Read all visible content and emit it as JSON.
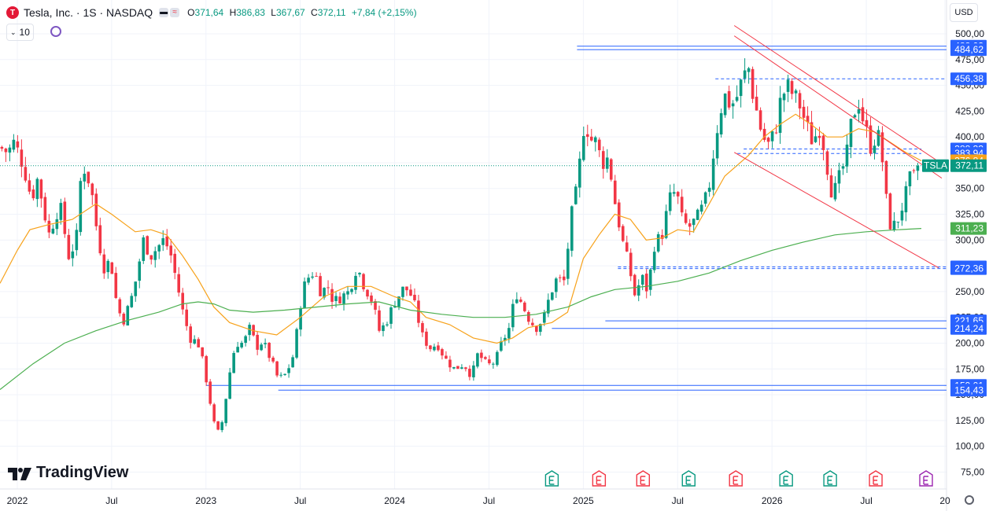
{
  "header": {
    "symbol": "Tesla, Inc. · 1S · NASDAQ",
    "logo_letter": "T",
    "open_label": "O",
    "open": "371,64",
    "high_label": "H",
    "high": "386,83",
    "low_label": "L",
    "low": "367,67",
    "close_label": "C",
    "close": "372,11",
    "change": "+7,84 (+2,15%)",
    "interval": "10",
    "currency": "USD"
  },
  "brand": {
    "name": "TradingView"
  },
  "colors": {
    "up": "#089981",
    "down": "#f23645",
    "ma_fast": "#f7a21b",
    "ma_slow": "#4caf50",
    "levels": "#2962ff",
    "channel": "#f23645"
  },
  "chart_data": {
    "type": "candlestick",
    "ticker": "TSLA",
    "y_ticks": [
      "75,00",
      "100,00",
      "125,00",
      "150,00",
      "175,00",
      "200,00",
      "225,00",
      "250,00",
      "275,00",
      "300,00",
      "325,00",
      "350,00",
      "375,00",
      "400,00",
      "425,00",
      "450,00",
      "475,00",
      "500,00"
    ],
    "ylim": [
      70,
      500
    ],
    "x_labels": [
      {
        "label": "2022",
        "t": 0
      },
      {
        "label": "Jul",
        "t": 6
      },
      {
        "label": "2023",
        "t": 12
      },
      {
        "label": "Jul",
        "t": 18
      },
      {
        "label": "2024",
        "t": 24
      },
      {
        "label": "Jul",
        "t": 30
      },
      {
        "label": "2025",
        "t": 36
      },
      {
        "label": "Jul",
        "t": 42
      },
      {
        "label": "2026",
        "t": 48
      },
      {
        "label": "Jul",
        "t": 54
      },
      {
        "label": "20",
        "t": 59
      }
    ],
    "xlim": [
      -1.1,
      59.1
    ],
    "last_price": 372.11,
    "last_price_label": "372,11",
    "price_labels": [
      {
        "value": 488.03,
        "label": "488,03",
        "kind": "level"
      },
      {
        "value": 484.62,
        "label": "484,62",
        "kind": "level"
      },
      {
        "value": 456.38,
        "label": "456,38",
        "kind": "level"
      },
      {
        "value": 388.33,
        "label": "388,33",
        "kind": "level"
      },
      {
        "value": 383.94,
        "label": "383,94",
        "kind": "plain"
      },
      {
        "value": 376.84,
        "label": "376,84",
        "kind": "fast"
      },
      {
        "value": 311.23,
        "label": "311,23",
        "kind": "slow"
      },
      {
        "value": 273.92,
        "label": "273,92",
        "kind": "level"
      },
      {
        "value": 272.36,
        "label": "272,36",
        "kind": "level"
      },
      {
        "value": 221.65,
        "label": "221,65",
        "kind": "level"
      },
      {
        "value": 214.24,
        "label": "214,24",
        "kind": "level"
      },
      {
        "value": 159.01,
        "label": "159,01",
        "kind": "level"
      },
      {
        "value": 154.43,
        "label": "154,43",
        "kind": "level"
      }
    ],
    "levels": [
      {
        "value": 488.03,
        "t0": 35.6,
        "t1": 59.1,
        "dash": false
      },
      {
        "value": 484.62,
        "t0": 35.6,
        "t1": 59.1,
        "dash": false
      },
      {
        "value": 456.38,
        "t0": 44.4,
        "t1": 59.1,
        "dash": true
      },
      {
        "value": 383.94,
        "t0": 45.8,
        "t1": 57.5,
        "dash": true
      },
      {
        "value": 388.33,
        "t0": 46.2,
        "t1": 57.5,
        "dash": true
      },
      {
        "value": 273.92,
        "t0": 38.2,
        "t1": 59.1,
        "dash": true
      },
      {
        "value": 272.36,
        "t0": 38.2,
        "t1": 59.1,
        "dash": true
      },
      {
        "value": 221.65,
        "t0": 37.4,
        "t1": 59.1,
        "dash": false
      },
      {
        "value": 214.24,
        "t0": 34.0,
        "t1": 59.1,
        "dash": false
      },
      {
        "value": 159.01,
        "t0": 12.0,
        "t1": 59.1,
        "dash": false
      },
      {
        "value": 154.43,
        "t0": 16.6,
        "t1": 59.1,
        "dash": false
      }
    ],
    "channel": [
      {
        "t0": 45.6,
        "v0": 508,
        "t1": 59.0,
        "v1": 372
      },
      {
        "t0": 45.6,
        "v0": 498,
        "t1": 58.8,
        "v1": 360
      },
      {
        "t0": 45.6,
        "v0": 385,
        "t1": 58.6,
        "v1": 273
      }
    ],
    "earnings_markers": [
      {
        "t": 34.0,
        "type": "up"
      },
      {
        "t": 37.0,
        "type": "down"
      },
      {
        "t": 39.8,
        "type": "down"
      },
      {
        "t": 42.7,
        "type": "up"
      },
      {
        "t": 45.7,
        "type": "down"
      },
      {
        "t": 48.9,
        "type": "up"
      },
      {
        "t": 51.7,
        "type": "up"
      },
      {
        "t": 54.6,
        "type": "down"
      },
      {
        "t": 57.8,
        "type": "dividend"
      }
    ],
    "anchors": [
      [
        -1.1,
        390
      ],
      [
        -0.6,
        385
      ],
      [
        -0.2,
        395
      ],
      [
        0.4,
        372
      ],
      [
        0.9,
        340
      ],
      [
        1.3,
        360
      ],
      [
        2.0,
        305
      ],
      [
        2.7,
        335
      ],
      [
        3.3,
        282
      ],
      [
        3.8,
        305
      ],
      [
        4.1,
        375
      ],
      [
        4.4,
        365
      ],
      [
        4.7,
        350
      ],
      [
        5.1,
        305
      ],
      [
        5.6,
        268
      ],
      [
        5.9,
        285
      ],
      [
        6.3,
        240
      ],
      [
        6.7,
        220
      ],
      [
        7.2,
        240
      ],
      [
        7.6,
        265
      ],
      [
        8.0,
        300
      ],
      [
        8.5,
        285
      ],
      [
        9.3,
        300
      ],
      [
        9.7,
        290
      ],
      [
        10.2,
        255
      ],
      [
        10.6,
        225
      ],
      [
        11.0,
        205
      ],
      [
        11.5,
        200
      ],
      [
        11.9,
        175
      ],
      [
        12.3,
        140
      ],
      [
        12.6,
        115
      ],
      [
        12.9,
        112
      ],
      [
        13.3,
        150
      ],
      [
        13.6,
        180
      ],
      [
        13.9,
        200
      ],
      [
        14.4,
        200
      ],
      [
        14.8,
        215
      ],
      [
        15.2,
        196
      ],
      [
        15.6,
        202
      ],
      [
        16.1,
        185
      ],
      [
        16.6,
        165
      ],
      [
        17.1,
        170
      ],
      [
        17.6,
        190
      ],
      [
        18.1,
        248
      ],
      [
        18.4,
        262
      ],
      [
        18.9,
        270
      ],
      [
        19.3,
        250
      ],
      [
        19.8,
        255
      ],
      [
        20.1,
        240
      ],
      [
        20.6,
        245
      ],
      [
        21.1,
        250
      ],
      [
        21.6,
        275
      ],
      [
        22.0,
        258
      ],
      [
        22.6,
        240
      ],
      [
        23.0,
        212
      ],
      [
        23.4,
        218
      ],
      [
        24.0,
        240
      ],
      [
        24.5,
        252
      ],
      [
        24.9,
        252
      ],
      [
        25.3,
        235
      ],
      [
        25.8,
        205
      ],
      [
        26.3,
        195
      ],
      [
        26.7,
        200
      ],
      [
        27.2,
        185
      ],
      [
        27.8,
        175
      ],
      [
        28.4,
        180
      ],
      [
        28.9,
        168
      ],
      [
        29.3,
        190
      ],
      [
        29.9,
        178
      ],
      [
        30.4,
        182
      ],
      [
        30.8,
        200
      ],
      [
        31.3,
        215
      ],
      [
        31.7,
        250
      ],
      [
        32.1,
        238
      ],
      [
        32.6,
        222
      ],
      [
        33.0,
        215
      ],
      [
        33.5,
        225
      ],
      [
        33.9,
        248
      ],
      [
        34.3,
        262
      ],
      [
        34.8,
        260
      ],
      [
        35.2,
        320
      ],
      [
        35.6,
        350
      ],
      [
        35.8,
        378
      ],
      [
        36.1,
        420
      ],
      [
        36.4,
        398
      ],
      [
        36.8,
        395
      ],
      [
        37.2,
        375
      ],
      [
        37.6,
        380
      ],
      [
        38.0,
        338
      ],
      [
        38.5,
        298
      ],
      [
        38.9,
        275
      ],
      [
        39.3,
        245
      ],
      [
        39.7,
        265
      ],
      [
        40.1,
        250
      ],
      [
        40.5,
        295
      ],
      [
        41.0,
        305
      ],
      [
        41.5,
        340
      ],
      [
        41.9,
        348
      ],
      [
        42.3,
        318
      ],
      [
        42.7,
        312
      ],
      [
        43.2,
        320
      ],
      [
        43.7,
        335
      ],
      [
        44.0,
        352
      ],
      [
        44.4,
        398
      ],
      [
        44.7,
        425
      ],
      [
        45.0,
        440
      ],
      [
        45.4,
        430
      ],
      [
        45.8,
        440
      ],
      [
        46.1,
        455
      ],
      [
        46.5,
        468
      ],
      [
        46.8,
        440
      ],
      [
        47.1,
        420
      ],
      [
        47.4,
        400
      ],
      [
        47.8,
        392
      ],
      [
        48.2,
        405
      ],
      [
        48.6,
        440
      ],
      [
        49.0,
        448
      ],
      [
        49.4,
        440
      ],
      [
        49.8,
        430
      ],
      [
        50.2,
        410
      ],
      [
        50.6,
        395
      ],
      [
        51.0,
        410
      ],
      [
        51.4,
        385
      ],
      [
        51.7,
        350
      ],
      [
        52.0,
        348
      ],
      [
        52.4,
        365
      ],
      [
        52.8,
        385
      ],
      [
        53.1,
        420
      ],
      [
        53.5,
        435
      ],
      [
        53.9,
        410
      ],
      [
        54.3,
        390
      ],
      [
        54.7,
        405
      ],
      [
        55.0,
        380
      ],
      [
        55.4,
        318
      ],
      [
        55.7,
        312
      ],
      [
        56.0,
        320
      ],
      [
        56.4,
        338
      ],
      [
        56.8,
        360
      ],
      [
        57.1,
        360
      ],
      [
        57.5,
        372.11
      ]
    ],
    "ma_fast": [
      [
        -1.1,
        258
      ],
      [
        0.0,
        290
      ],
      [
        0.8,
        310
      ],
      [
        2.0,
        315
      ],
      [
        3.5,
        320
      ],
      [
        5.0,
        335
      ],
      [
        6.0,
        325
      ],
      [
        7.5,
        308
      ],
      [
        8.5,
        310
      ],
      [
        9.5,
        305
      ],
      [
        10.5,
        285
      ],
      [
        11.5,
        262
      ],
      [
        12.5,
        235
      ],
      [
        13.5,
        220
      ],
      [
        15.0,
        212
      ],
      [
        16.5,
        208
      ],
      [
        18.0,
        225
      ],
      [
        19.5,
        245
      ],
      [
        21.0,
        255
      ],
      [
        22.5,
        255
      ],
      [
        24.0,
        245
      ],
      [
        25.0,
        240
      ],
      [
        26.0,
        225
      ],
      [
        27.5,
        218
      ],
      [
        29.0,
        205
      ],
      [
        30.5,
        200
      ],
      [
        31.5,
        205
      ],
      [
        32.5,
        215
      ],
      [
        34.0,
        220
      ],
      [
        35.0,
        230
      ],
      [
        36.0,
        282
      ],
      [
        37.0,
        305
      ],
      [
        38.0,
        325
      ],
      [
        39.0,
        320
      ],
      [
        40.0,
        300
      ],
      [
        41.0,
        302
      ],
      [
        42.0,
        310
      ],
      [
        43.0,
        308
      ],
      [
        44.0,
        335
      ],
      [
        45.0,
        362
      ],
      [
        46.5,
        382
      ],
      [
        47.5,
        400
      ],
      [
        48.5,
        412
      ],
      [
        49.5,
        422
      ],
      [
        50.5,
        412
      ],
      [
        51.5,
        400
      ],
      [
        52.5,
        400
      ],
      [
        53.5,
        408
      ],
      [
        54.5,
        405
      ],
      [
        55.5,
        395
      ],
      [
        56.5,
        385
      ],
      [
        57.5,
        376.84
      ]
    ],
    "ma_slow": [
      [
        -1.1,
        155
      ],
      [
        1.0,
        180
      ],
      [
        3.0,
        200
      ],
      [
        5.0,
        212
      ],
      [
        7.0,
        222
      ],
      [
        9.0,
        230
      ],
      [
        10.5,
        238
      ],
      [
        11.5,
        240
      ],
      [
        12.5,
        238
      ],
      [
        13.5,
        232
      ],
      [
        15.0,
        230
      ],
      [
        17.0,
        232
      ],
      [
        19.0,
        235
      ],
      [
        21.0,
        238
      ],
      [
        23.0,
        240
      ],
      [
        25.0,
        232
      ],
      [
        27.0,
        228
      ],
      [
        29.0,
        225
      ],
      [
        31.0,
        225
      ],
      [
        33.0,
        228
      ],
      [
        35.0,
        235
      ],
      [
        36.5,
        245
      ],
      [
        38.0,
        252
      ],
      [
        40.0,
        255
      ],
      [
        42.0,
        260
      ],
      [
        44.0,
        268
      ],
      [
        46.0,
        280
      ],
      [
        48.0,
        290
      ],
      [
        50.0,
        298
      ],
      [
        52.0,
        305
      ],
      [
        54.0,
        308
      ],
      [
        56.0,
        310
      ],
      [
        57.5,
        311.23
      ]
    ]
  }
}
